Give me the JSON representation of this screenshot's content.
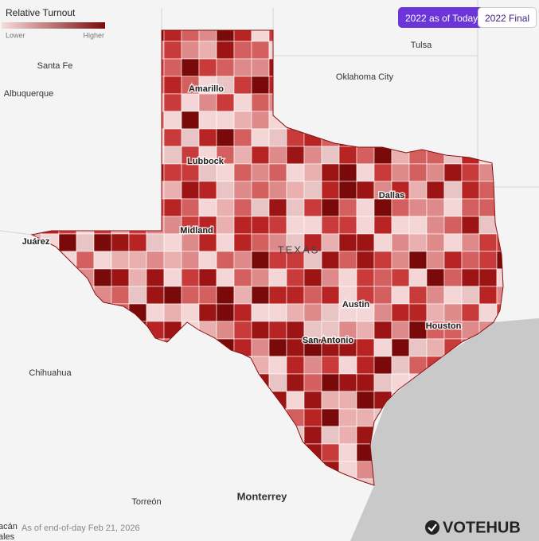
{
  "legend": {
    "title": "Relative Turnout",
    "low": "Lower",
    "high": "Higher"
  },
  "buttons": [
    "2022 as of Today",
    "2022 Final"
  ],
  "places": {
    "tulsa": "Tulsa",
    "santa_fe": "Santa Fe",
    "oklahoma_city": "Oklahoma City",
    "albuquerque": "Albuquerque",
    "amarillo": "Amarillo",
    "lubbock": "Lubbock",
    "dallas": "Dallas",
    "juarez": "Juárez",
    "midland": "Midland",
    "texas": "TEXAS",
    "austin": "Austin",
    "houston": "Houston",
    "san_antonio": "San Antonio",
    "chihuahua": "Chihuahua",
    "monterrey": "Monterrey",
    "torreon": "Torreón",
    "edge_1": "acán",
    "edge_2": "ales"
  },
  "footer": {
    "note": "As of end-of-day Feb 21, 2026",
    "brand": "VOTEHUB"
  }
}
